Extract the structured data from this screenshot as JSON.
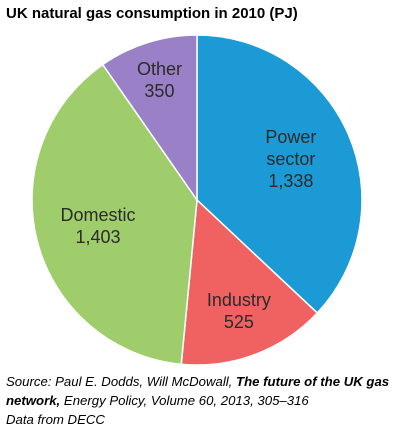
{
  "chart_data": {
    "type": "pie",
    "title": "UK natural  gas consumption  in 2010 (PJ)",
    "categories": [
      "Power sector",
      "Industry",
      "Domestic",
      "Other"
    ],
    "values": [
      1338,
      525,
      1403,
      350
    ],
    "value_labels": [
      "1,338",
      "525",
      "1,403",
      "350"
    ],
    "colors": [
      "#1b9ad6",
      "#f06262",
      "#9fcd6c",
      "#9a80c6"
    ],
    "source": {
      "prefix": "Source: Paul E. Dodds,  Will McDowall, ",
      "title": "The future of the UK gas network,",
      "suffix": " Energy Policy, Volume 60, 2013, 305–316"
    },
    "note": "Data from DECC"
  }
}
